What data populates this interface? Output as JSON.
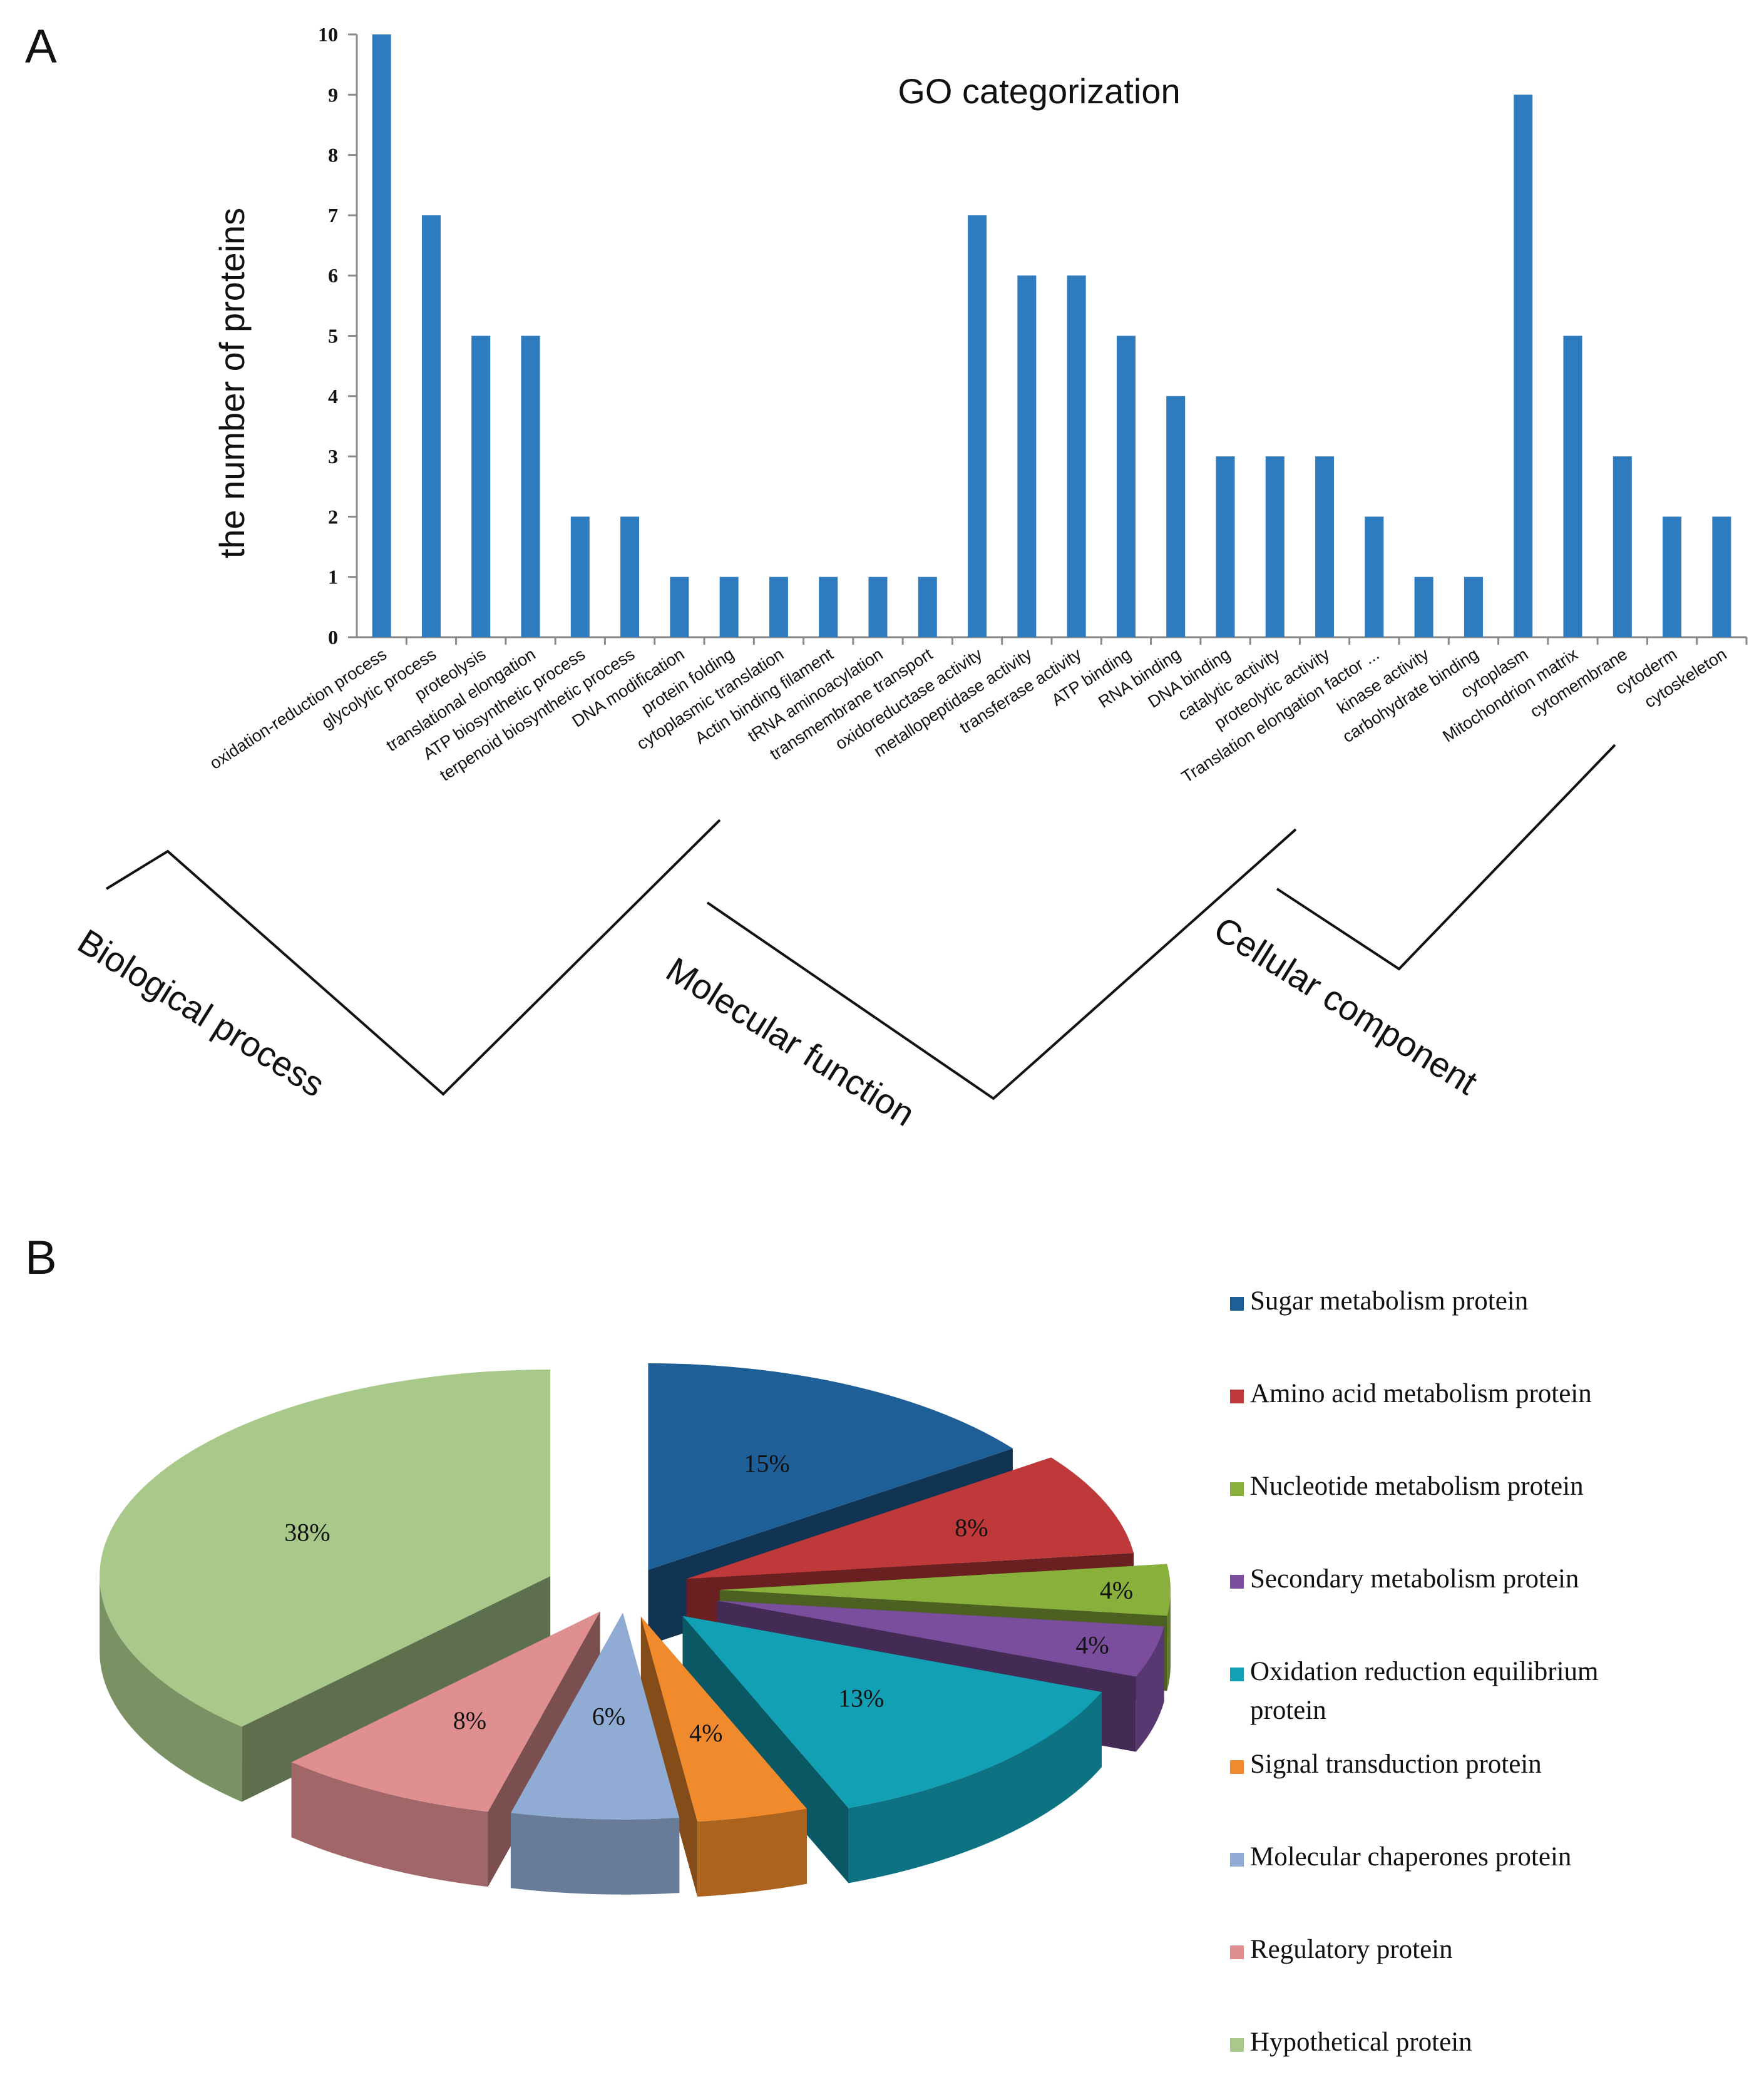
{
  "panels": {
    "a": "A",
    "b": "B"
  },
  "chart_data": [
    {
      "type": "bar",
      "title": "GO categorization",
      "xlabel": "",
      "ylabel": "the number of proteins",
      "ylim": [
        0,
        10
      ],
      "yticks": [
        0,
        1,
        2,
        3,
        4,
        5,
        6,
        7,
        8,
        9,
        10
      ],
      "grid": false,
      "color": "#2e7bbf",
      "categories": [
        "oxidation-reduction process",
        "glycolytic process",
        "proteolysis",
        "translational elongation",
        "ATP biosynthetic process",
        "terpenoid biosynthetic process",
        "DNA modification",
        "protein folding",
        "cytoplasmic translation",
        "Actin binding filament",
        "tRNA aminoacylation",
        "transmembrane transport",
        "oxidoreductase activity",
        "metallopeptidase activity",
        "transferase activity",
        "ATP binding",
        "RNA binding",
        "DNA binding",
        "catalytic activity",
        "proteolytic activity",
        "Translation elongation factor ...",
        "kinase activity",
        "carbohydrate binding",
        "cytoplasm",
        "Mitochondrion matrix",
        "cytomembrane",
        "cytoderm",
        "cytoskeleton"
      ],
      "values": [
        10,
        7,
        5,
        5,
        2,
        2,
        1,
        1,
        1,
        1,
        1,
        1,
        7,
        6,
        6,
        5,
        4,
        3,
        3,
        3,
        2,
        1,
        1,
        9,
        5,
        3,
        2,
        2
      ],
      "groups": [
        {
          "label": "Biological process",
          "first": 0,
          "last": 11
        },
        {
          "label": "Molecular function",
          "first": 12,
          "last": 22
        },
        {
          "label": "Cellular component",
          "first": 23,
          "last": 27
        }
      ]
    },
    {
      "type": "pie",
      "title": "",
      "legend_position": "right",
      "slices": [
        {
          "label": "Sugar metabolism protein",
          "value": 15,
          "text": "15%",
          "color": "#1f5f97"
        },
        {
          "label": "Amino acid metabolism protein",
          "value": 8,
          "text": "8%",
          "color": "#c0393a"
        },
        {
          "label": "Nucleotide metabolism protein",
          "value": 4,
          "text": "4%",
          "color": "#8ab03c"
        },
        {
          "label": "Secondary metabolism  protein",
          "value": 4,
          "text": "4%",
          "color": "#7a4e9c"
        },
        {
          "label": "Oxidation reduction equilibrium protein",
          "value": 13,
          "text": "13%",
          "color": "#12a0b5"
        },
        {
          "label": "Signal transduction protein",
          "value": 4,
          "text": "4%",
          "color": "#f08a2c"
        },
        {
          "label": "Molecular chaperones protein",
          "value": 6,
          "text": "6%",
          "color": "#90acd4"
        },
        {
          "label": "Regulatory protein",
          "value": 8,
          "text": "8%",
          "color": "#e08f90"
        },
        {
          "label": "Hypothetical protein",
          "value": 38,
          "text": "38%",
          "color": "#a9c98a"
        }
      ]
    }
  ]
}
